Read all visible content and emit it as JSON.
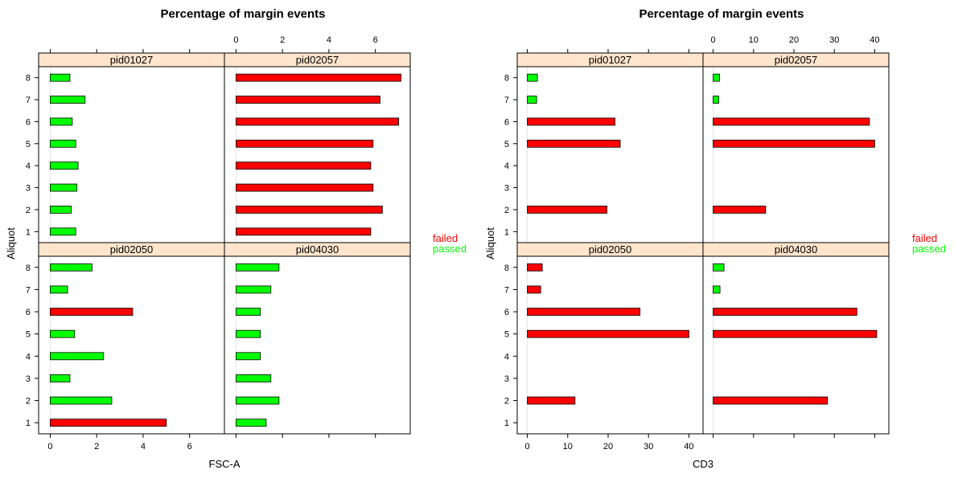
{
  "colors": {
    "failed": "#ff0000",
    "passed": "#00ff00",
    "strip": "#ffe5cc",
    "panel_border": "#000000",
    "reference_line": "#e6e6e6"
  },
  "legend": {
    "entries": [
      {
        "name": "failed",
        "color": "#ff0000"
      },
      {
        "name": "passed",
        "color": "#00ff00"
      }
    ],
    "placement": "right"
  },
  "chart_data": [
    {
      "type": "bar",
      "title": "Percentage of margin events",
      "xlabel": "FSC-A",
      "ylabel": "Aliquot",
      "categories": [
        "1",
        "2",
        "3",
        "4",
        "5",
        "6",
        "7",
        "8"
      ],
      "xlim": [
        -0.5,
        7.5
      ],
      "xticks": [
        0,
        2,
        4,
        6
      ],
      "grid": false,
      "panels": [
        {
          "name": "pid01027",
          "values": [
            1.1,
            0.9,
            1.15,
            1.2,
            1.1,
            0.95,
            1.5,
            0.85
          ],
          "status": [
            "passed",
            "passed",
            "passed",
            "passed",
            "passed",
            "passed",
            "passed",
            "passed"
          ]
        },
        {
          "name": "pid02057",
          "values": [
            5.8,
            6.3,
            5.9,
            5.8,
            5.9,
            7.0,
            6.2,
            7.1
          ],
          "status": [
            "failed",
            "failed",
            "failed",
            "failed",
            "failed",
            "failed",
            "failed",
            "failed"
          ]
        },
        {
          "name": "pid02050",
          "values": [
            5.0,
            2.65,
            0.85,
            2.3,
            1.05,
            3.55,
            0.75,
            1.8
          ],
          "status": [
            "failed",
            "passed",
            "passed",
            "passed",
            "passed",
            "failed",
            "passed",
            "passed"
          ]
        },
        {
          "name": "pid04030",
          "values": [
            1.3,
            1.85,
            1.5,
            1.05,
            1.05,
            1.05,
            1.5,
            1.85
          ],
          "status": [
            "passed",
            "passed",
            "passed",
            "passed",
            "passed",
            "passed",
            "passed",
            "passed"
          ]
        }
      ]
    },
    {
      "type": "bar",
      "title": "Percentage of margin events",
      "xlabel": "CD3",
      "ylabel": "Aliquot",
      "categories": [
        "1",
        "2",
        "3",
        "4",
        "5",
        "6",
        "7",
        "8"
      ],
      "xlim": [
        -2.5,
        43.5
      ],
      "xticks": [
        0,
        10,
        20,
        30,
        40
      ],
      "grid": false,
      "panels": [
        {
          "name": "pid01027",
          "values": [
            0,
            19.7,
            0,
            0,
            23.0,
            21.7,
            2.3,
            2.5
          ],
          "status": [
            "none",
            "failed",
            "none",
            "none",
            "failed",
            "failed",
            "passed",
            "passed"
          ]
        },
        {
          "name": "pid02057",
          "values": [
            0,
            13.0,
            0,
            0,
            40.0,
            38.7,
            1.4,
            1.6
          ],
          "status": [
            "none",
            "failed",
            "none",
            "none",
            "failed",
            "failed",
            "passed",
            "passed"
          ]
        },
        {
          "name": "pid02050",
          "values": [
            0,
            11.8,
            0,
            0,
            40.0,
            27.9,
            3.3,
            3.7
          ],
          "status": [
            "none",
            "failed",
            "none",
            "none",
            "failed",
            "failed",
            "failed",
            "failed"
          ]
        },
        {
          "name": "pid04030",
          "values": [
            0,
            28.3,
            0,
            0,
            40.5,
            35.6,
            1.7,
            2.7
          ],
          "status": [
            "none",
            "failed",
            "none",
            "none",
            "failed",
            "failed",
            "passed",
            "passed"
          ]
        }
      ]
    }
  ]
}
